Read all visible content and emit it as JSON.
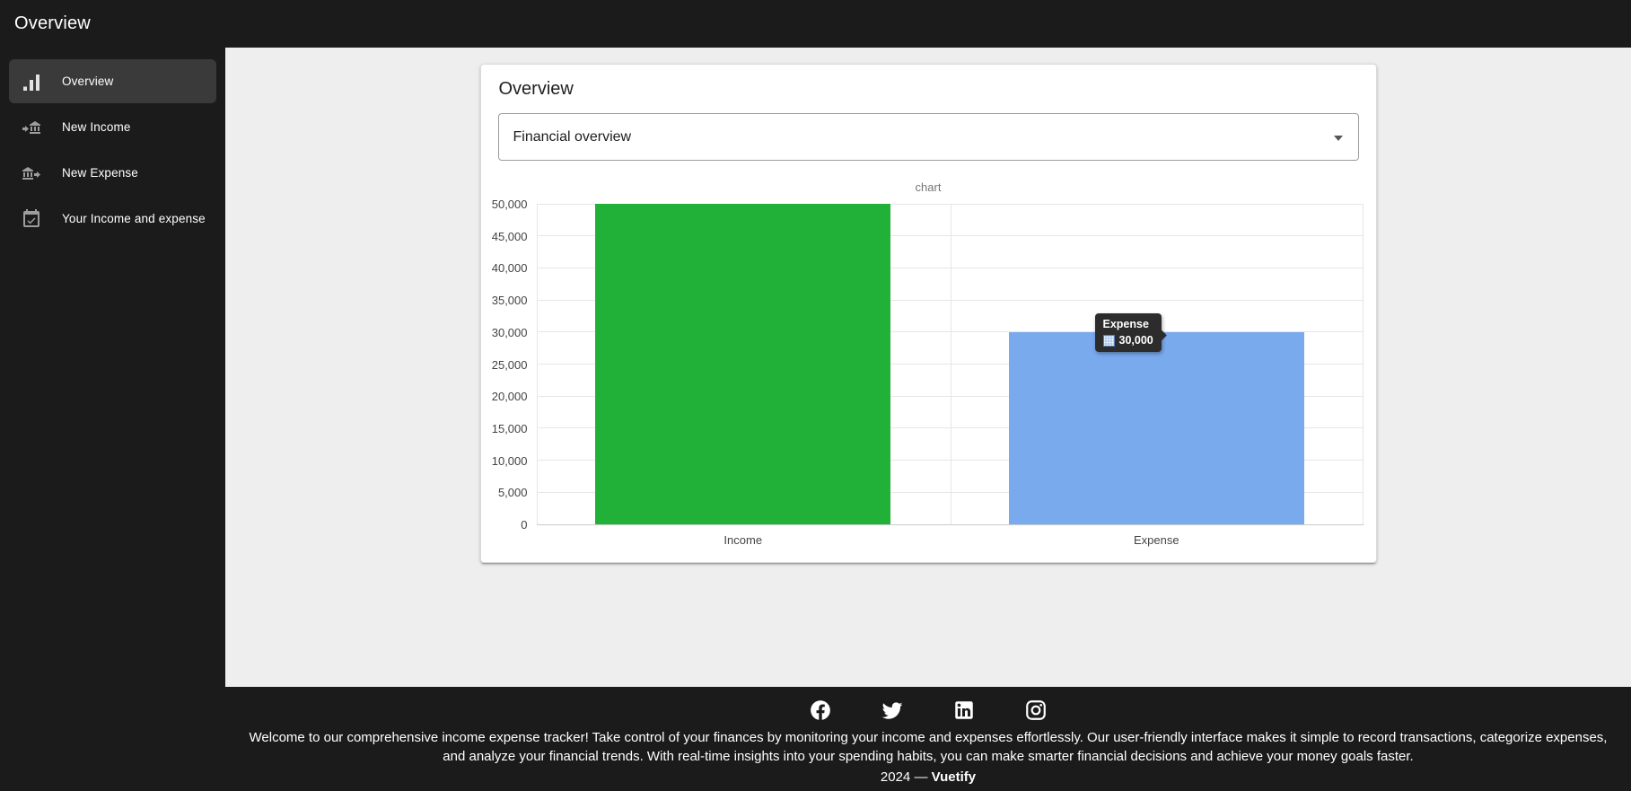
{
  "app_bar": {
    "title": "Overview"
  },
  "sidebar": {
    "items": [
      {
        "label": "Overview",
        "icon": "bar-chart-icon",
        "active": true
      },
      {
        "label": "New Income",
        "icon": "bank-transfer-in-icon",
        "active": false
      },
      {
        "label": "New Expense",
        "icon": "bank-transfer-out-icon",
        "active": false
      },
      {
        "label": "Your Income and expense",
        "icon": "calendar-check-icon",
        "active": false
      }
    ]
  },
  "main": {
    "card_title": "Overview",
    "select": {
      "value": "Financial overview",
      "icon": "menu-down-icon"
    }
  },
  "chart_data": {
    "type": "bar",
    "title": "chart",
    "categories": [
      "Income",
      "Expense"
    ],
    "values": [
      50000,
      30000
    ],
    "colors": [
      "#21b038",
      "#7aaaee"
    ],
    "ylim": [
      0,
      50000
    ],
    "ytick_step": 5000,
    "grid": true,
    "legend": "none",
    "tooltip": {
      "label": "Expense",
      "value": "30,000"
    }
  },
  "footer": {
    "social": [
      {
        "icon": "facebook-icon"
      },
      {
        "icon": "twitter-icon"
      },
      {
        "icon": "linkedin-icon"
      },
      {
        "icon": "instagram-icon"
      }
    ],
    "welcome_text": "Welcome to our comprehensive income expense tracker! Take control of your finances by monitoring your income and expenses effortlessly. Our user-friendly interface makes it simple to record transactions, categorize expenses, and analyze your financial trends. With real-time insights into your spending habits, you can make smarter financial decisions and achieve your money goals faster.",
    "credit_prefix": "2024 —",
    "credit_brand": "Vuetify"
  },
  "theme": {
    "dark_bg": "#1b1b1b",
    "content_bg": "#eeeeee",
    "card_bg": "#ffffff",
    "active_item_bg": "#3a3a3a"
  }
}
